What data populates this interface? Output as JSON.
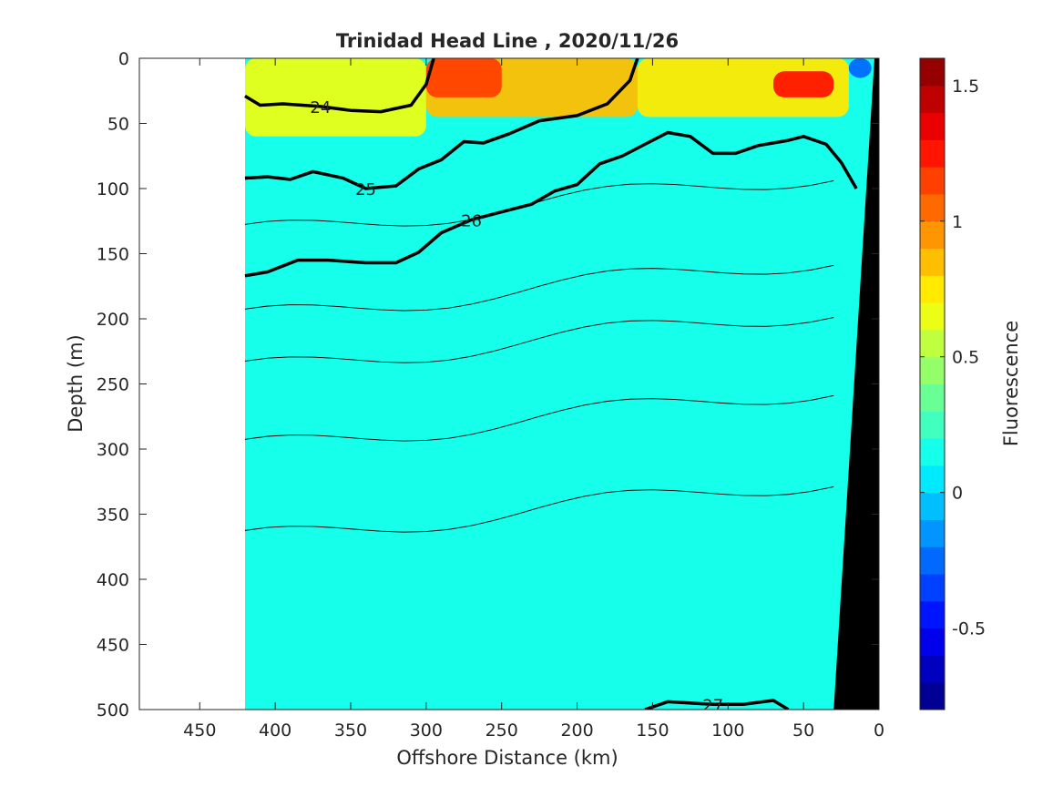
{
  "chart_data": {
    "type": "heatmap",
    "title": "Trinidad Head Line , 2020/11/26",
    "xlabel": "Offshore Distance (km)",
    "ylabel": "Depth (m)",
    "colorbar_label": "Fluorescence",
    "xlim": [
      490,
      0
    ],
    "ylim": [
      500,
      0
    ],
    "x_reversed": true,
    "y_reversed": true,
    "xticks": [
      450,
      400,
      350,
      300,
      250,
      200,
      150,
      100,
      50,
      0
    ],
    "xtick_labels": [
      "450",
      "400",
      "350",
      "300",
      "250",
      "200",
      "150",
      "100",
      "50",
      "0"
    ],
    "yticks": [
      0,
      50,
      100,
      150,
      200,
      250,
      300,
      350,
      400,
      450,
      500
    ],
    "ytick_labels": [
      "0",
      "50",
      "100",
      "150",
      "200",
      "250",
      "300",
      "350",
      "400",
      "450",
      "500"
    ],
    "colorbar": {
      "clim": [
        -0.8,
        1.6
      ],
      "ticks": [
        -0.5,
        0,
        0.5,
        1,
        1.5
      ],
      "tick_labels": [
        "-0.5",
        "0",
        "0.5",
        "1",
        "1.5"
      ],
      "colormap": "jet",
      "levels": 24
    },
    "data_x_range": [
      0,
      420
    ],
    "background_fluorescence": 0.15,
    "surface_patches": [
      {
        "x": [
          300,
          420
        ],
        "depth": [
          0,
          60
        ],
        "value": 0.65
      },
      {
        "x": [
          160,
          300
        ],
        "depth": [
          0,
          45
        ],
        "value": 0.85
      },
      {
        "x": [
          20,
          160
        ],
        "depth": [
          0,
          45
        ],
        "value": 0.75
      },
      {
        "x": [
          250,
          300
        ],
        "depth": [
          0,
          30
        ],
        "value": 1.1
      },
      {
        "x": [
          30,
          70
        ],
        "depth": [
          10,
          30
        ],
        "value": 1.3
      },
      {
        "x": [
          5,
          20
        ],
        "depth": [
          0,
          15
        ],
        "value": -0.3
      }
    ],
    "labeled_contours": [
      {
        "label": "24",
        "points": [
          [
            420,
            29
          ],
          [
            410,
            36
          ],
          [
            395,
            35
          ],
          [
            370,
            37
          ],
          [
            350,
            40
          ],
          [
            330,
            41
          ],
          [
            310,
            36
          ],
          [
            300,
            20
          ],
          [
            295,
            0
          ]
        ]
      },
      {
        "label": "25",
        "points": [
          [
            420,
            92
          ],
          [
            405,
            91
          ],
          [
            390,
            93
          ],
          [
            375,
            87
          ],
          [
            355,
            92
          ],
          [
            340,
            100
          ],
          [
            320,
            98
          ],
          [
            305,
            85
          ],
          [
            290,
            78
          ],
          [
            275,
            64
          ],
          [
            262,
            65
          ],
          [
            245,
            58
          ],
          [
            225,
            48
          ],
          [
            200,
            44
          ],
          [
            180,
            35
          ],
          [
            165,
            17
          ],
          [
            160,
            0
          ]
        ]
      },
      {
        "label": "25",
        "points": [
          [
            420,
            92
          ],
          [
            405,
            91
          ]
        ]
      },
      {
        "label": "26",
        "points": [
          [
            420,
            167
          ],
          [
            405,
            164
          ],
          [
            385,
            155
          ],
          [
            365,
            155
          ],
          [
            340,
            157
          ],
          [
            320,
            157
          ],
          [
            305,
            149
          ],
          [
            290,
            134
          ],
          [
            270,
            124
          ],
          [
            250,
            118
          ],
          [
            230,
            112
          ],
          [
            215,
            102
          ],
          [
            200,
            97
          ],
          [
            185,
            81
          ],
          [
            170,
            75
          ],
          [
            155,
            66
          ],
          [
            140,
            57
          ],
          [
            125,
            60
          ],
          [
            110,
            73
          ],
          [
            95,
            73
          ],
          [
            80,
            67
          ],
          [
            60,
            63
          ],
          [
            50,
            60
          ],
          [
            35,
            66
          ],
          [
            25,
            80
          ],
          [
            15,
            100
          ]
        ]
      },
      {
        "label": "27",
        "points": [
          [
            155,
            500
          ],
          [
            140,
            494
          ],
          [
            110,
            496
          ],
          [
            90,
            496
          ],
          [
            70,
            493
          ],
          [
            60,
            500
          ]
        ]
      }
    ],
    "thin_contour_depths": [
      135,
      200,
      240,
      300,
      370
    ]
  }
}
